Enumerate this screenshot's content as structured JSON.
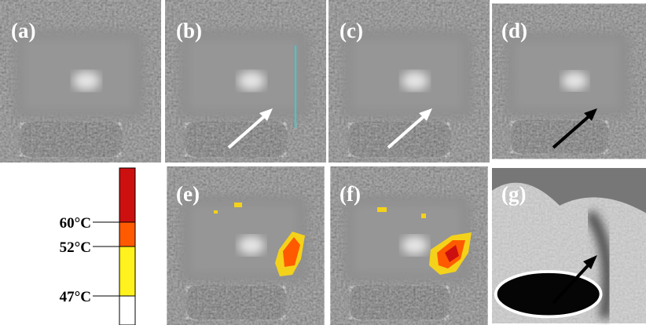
{
  "panels": [
    {
      "label": "(a)"
    },
    {
      "label": "(b)"
    },
    {
      "label": "(c)"
    },
    {
      "label": "(d)"
    },
    {
      "label": "(e)"
    },
    {
      "label": "(f)"
    },
    {
      "label": "(g)"
    }
  ],
  "colorbar": {
    "labels": [
      "60°C",
      "52°C",
      "47°C"
    ]
  }
}
